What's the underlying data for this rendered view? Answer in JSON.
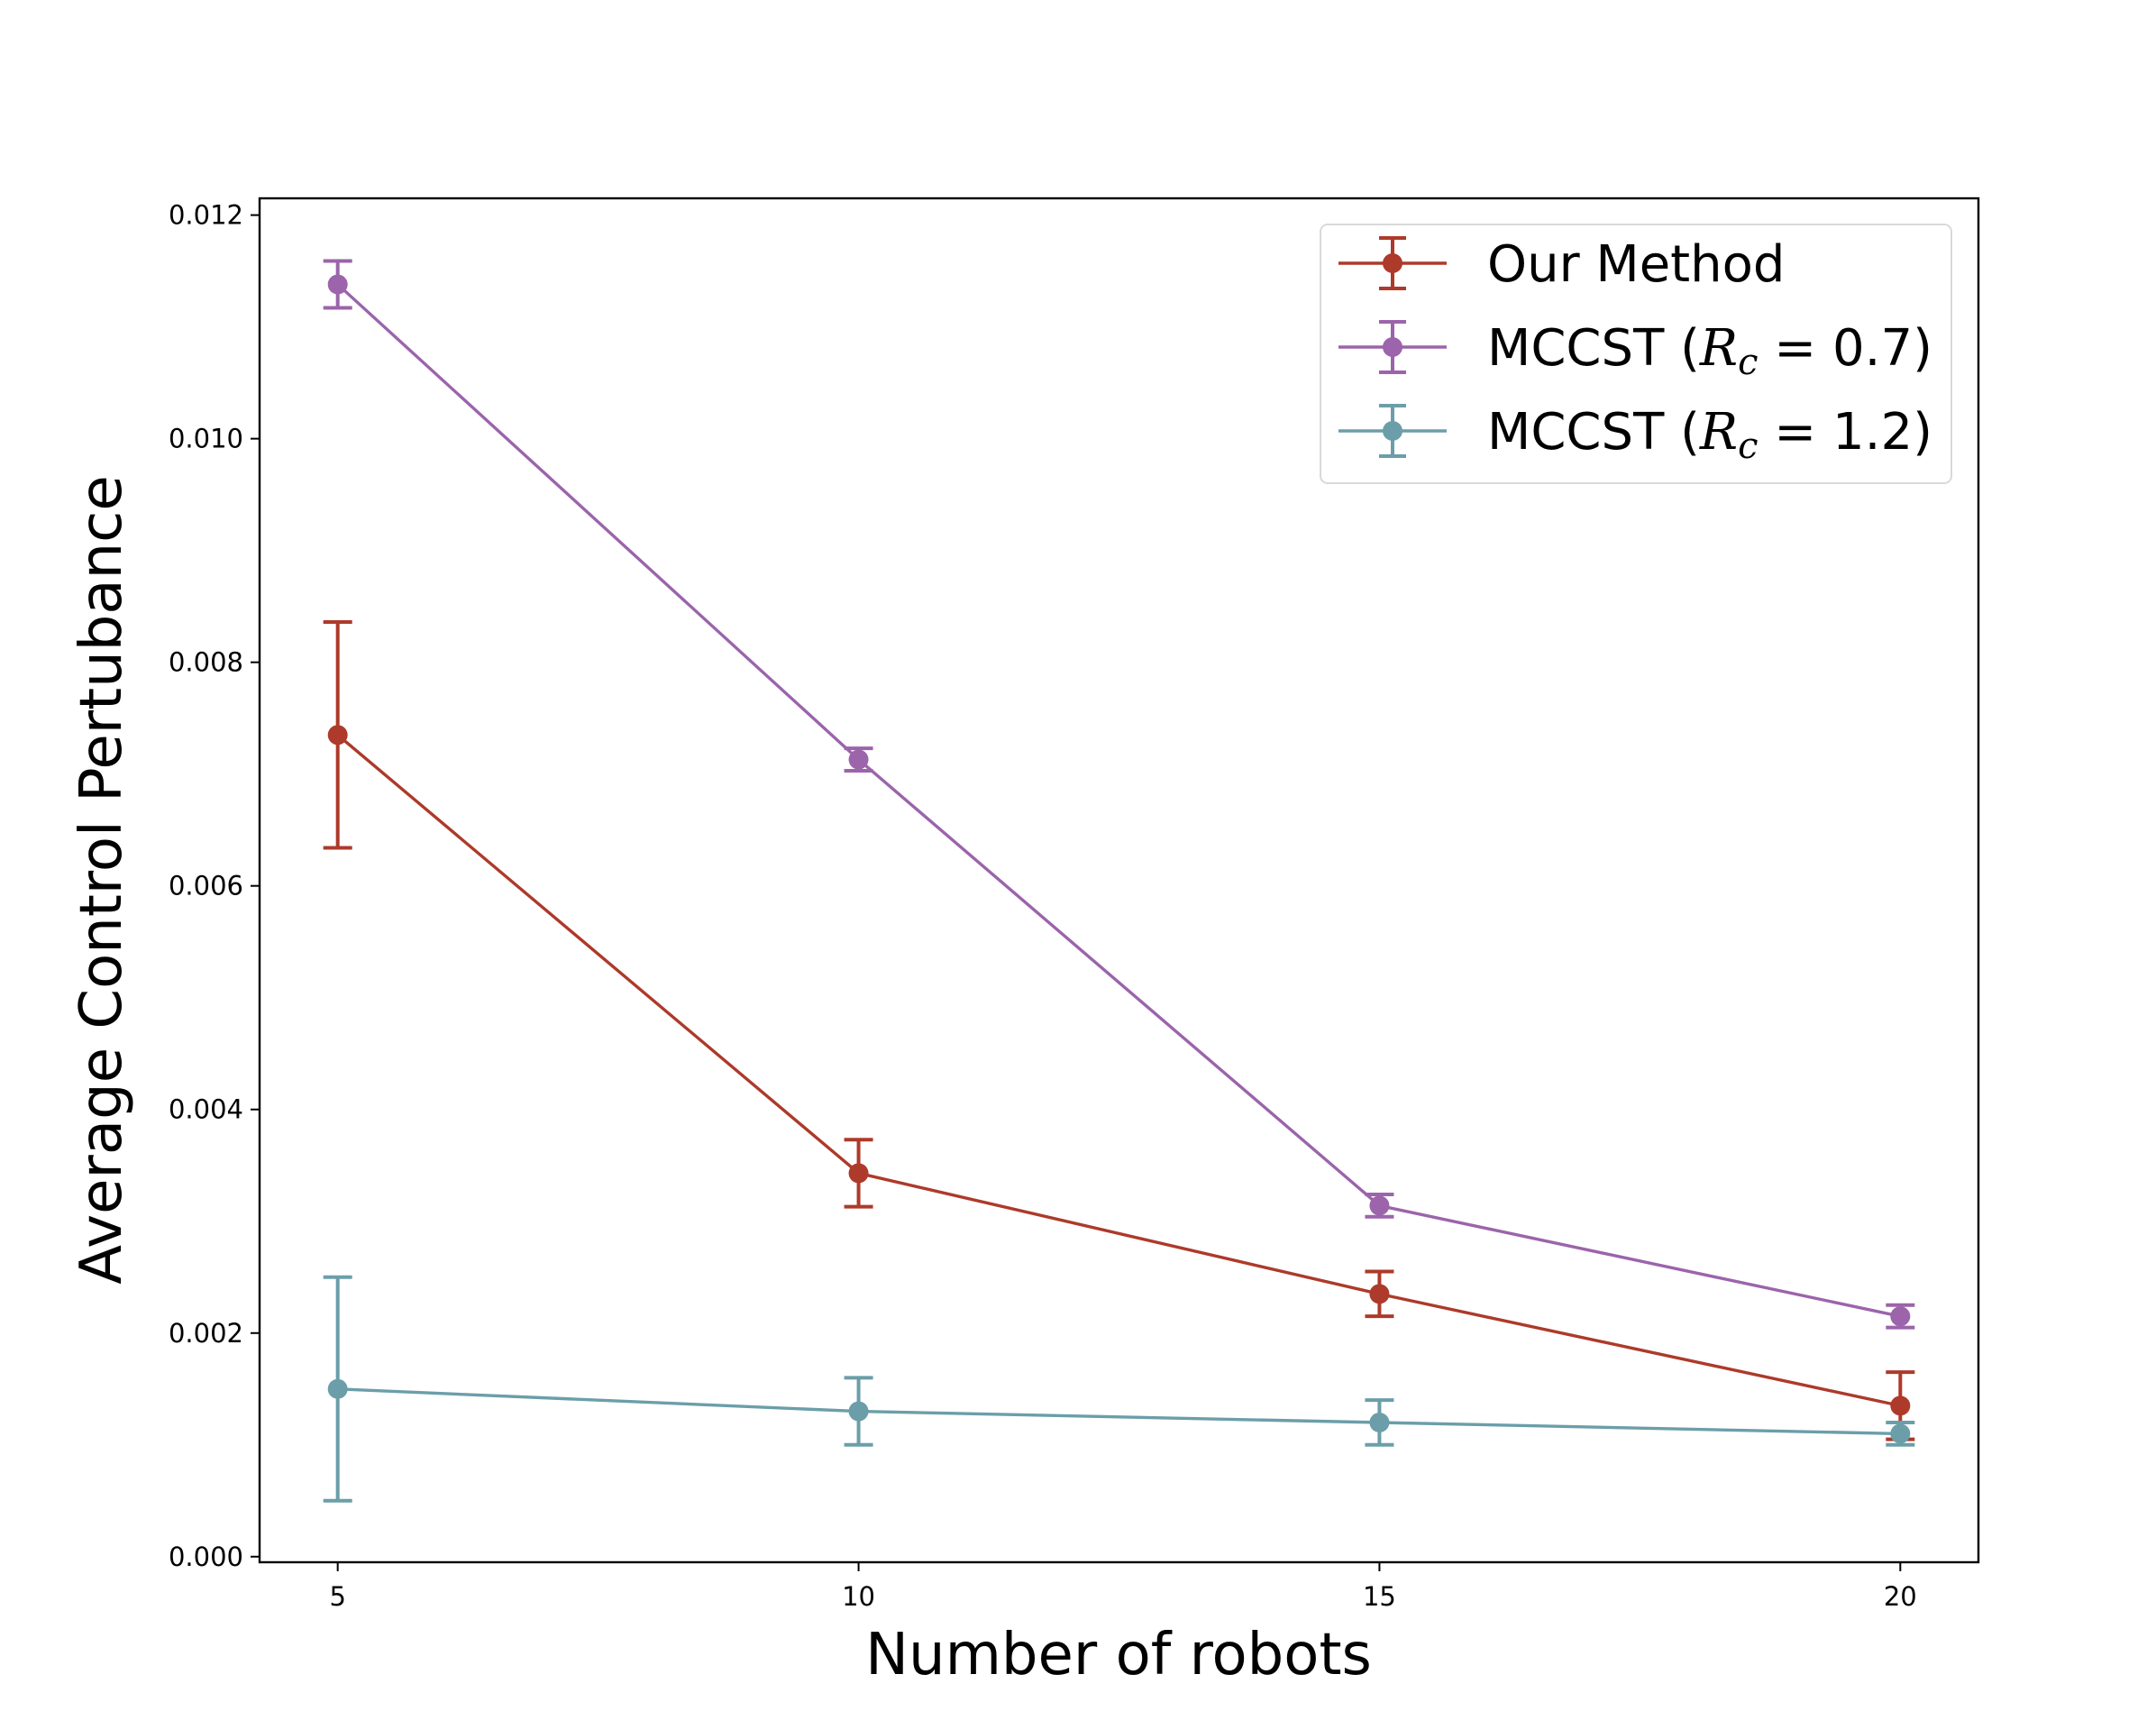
{
  "chart_data": {
    "type": "line",
    "title": "",
    "xlabel": "Number of robots",
    "ylabel": "Average Control Pertubance",
    "x": [
      5,
      10,
      15,
      20
    ],
    "xticks": [
      "5",
      "10",
      "15",
      "20"
    ],
    "xlim": [
      4.25,
      20.75
    ],
    "yticks": [
      "0.000",
      "0.002",
      "0.004",
      "0.006",
      "0.008",
      "0.010",
      "0.012"
    ],
    "ytick_values": [
      0,
      0.002,
      0.004,
      0.006,
      0.008,
      0.01,
      0.012
    ],
    "ylim": [
      -5e-05,
      0.01215
    ],
    "grid": false,
    "legend_position": "top-right",
    "series": [
      {
        "name": "Our Method",
        "legend_prefix": "Our Method",
        "legend_math": "",
        "legend_suffix": "",
        "color": "#ad3a2a",
        "values": [
          0.00735,
          0.00343,
          0.00235,
          0.00135
        ],
        "errors": [
          0.00101,
          0.0003,
          0.0002,
          0.0003
        ]
      },
      {
        "name": "MCCST (R_c = 0.7)",
        "legend_prefix": "MCCST (",
        "legend_math": "R",
        "legend_sub": "c",
        "legend_suffix": " = 0.7)",
        "color": "#9b64ab",
        "values": [
          0.01138,
          0.00713,
          0.00314,
          0.00215
        ],
        "errors": [
          0.00021,
          0.0001,
          0.0001,
          0.0001
        ]
      },
      {
        "name": "MCCST (R_c = 1.2)",
        "legend_prefix": "MCCST (",
        "legend_math": "R",
        "legend_sub": "c",
        "legend_suffix": " = 1.2)",
        "color": "#6b9ea9",
        "values": [
          0.0015,
          0.0013,
          0.0012,
          0.0011
        ],
        "errors": [
          0.001,
          0.0003,
          0.0002,
          0.0001
        ]
      }
    ]
  }
}
